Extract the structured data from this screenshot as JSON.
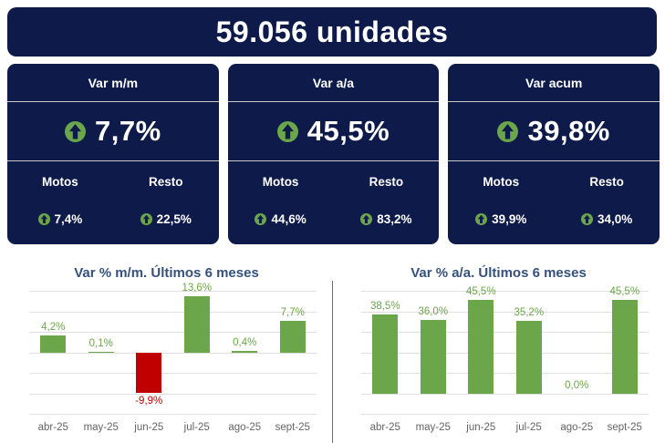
{
  "header": {
    "total": "59.056 unidades"
  },
  "kpi_cards": [
    {
      "title": "Var m/m",
      "value": "7,7%",
      "motos_label": "Motos",
      "motos_value": "7,4%",
      "resto_label": "Resto",
      "resto_value": "22,5%"
    },
    {
      "title": "Var a/a",
      "value": "45,5%",
      "motos_label": "Motos",
      "motos_value": "44,6%",
      "resto_label": "Resto",
      "resto_value": "83,2%"
    },
    {
      "title": "Var acum",
      "value": "39,8%",
      "motos_label": "Motos",
      "motos_value": "39,9%",
      "resto_label": "Resto",
      "resto_value": "34,0%"
    }
  ],
  "icons": {
    "up_arrow": "up-arrow-in-circle"
  },
  "colors": {
    "navy": "#0d1a4a",
    "green": "#6ba64a",
    "red": "#c00000",
    "chart_title": "#36517b",
    "axis_label": "#646464",
    "gridline": "#e0e0e0"
  },
  "chart_data": [
    {
      "type": "bar",
      "title": "Var % m/m. Últimos 6 meses",
      "categories": [
        "abr-25",
        "may-25",
        "jun-25",
        "jul-25",
        "ago-25",
        "sept-25"
      ],
      "values": [
        4.2,
        0.1,
        -9.9,
        13.6,
        0.4,
        7.7
      ],
      "labels": [
        "4,2%",
        "0,1%",
        "-9,9%",
        "13,6%",
        "0,4%",
        "7,7%"
      ],
      "xlabel": "",
      "ylabel": "",
      "ylim": [
        -15,
        15
      ],
      "grid_step": 5,
      "grid": true,
      "legend": false,
      "positive_color": "#6ba64a",
      "negative_color": "#c00000"
    },
    {
      "type": "bar",
      "title": "Var % a/a. Últimos 6 meses",
      "categories": [
        "abr-25",
        "may-25",
        "jun-25",
        "jul-25",
        "ago-25",
        "sept-25"
      ],
      "values": [
        38.5,
        36.0,
        45.5,
        35.2,
        0.0,
        45.5
      ],
      "labels": [
        "38,5%",
        "36,0%",
        "45,5%",
        "35,2%",
        "0,0%",
        "45,5%"
      ],
      "xlabel": "",
      "ylabel": "",
      "ylim": [
        -10,
        50
      ],
      "grid_step": 10,
      "grid": true,
      "legend": false,
      "positive_color": "#6ba64a",
      "negative_color": "#c00000"
    }
  ]
}
